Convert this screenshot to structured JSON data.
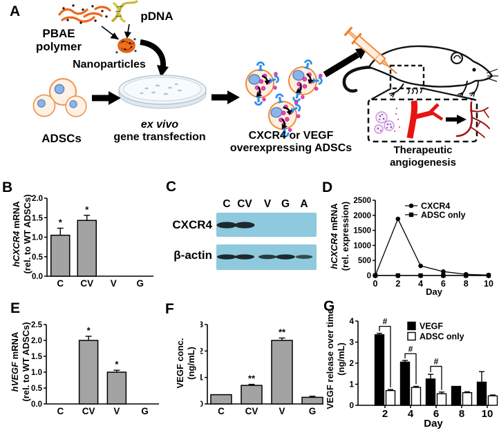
{
  "panels": {
    "a": "A",
    "b": "B",
    "c": "C",
    "d": "D",
    "e": "E",
    "f": "F",
    "g": "G"
  },
  "panelA": {
    "pbae_line1": "PBAE",
    "pbae_line2": "polymer",
    "pdna": "pDNA",
    "nanoparticles": "Nanoparticles",
    "adscs": "ADSCs",
    "exvivo": "ex vivo",
    "transfection": "gene transfection",
    "overexpress_line1": "CXCR4 or VEGF",
    "overexpress_line2": "overexpressing ADSCs",
    "therapeutic_line1": "Therapeutic",
    "therapeutic_line2": "angiogenesis"
  },
  "panelC": {
    "lanes": [
      "C",
      "CV",
      "V",
      "G",
      "A"
    ],
    "row1_label": "CXCR4",
    "row2_label": "β-actin",
    "row1_bands": [
      1,
      1,
      0,
      0,
      0
    ],
    "row2_bands": [
      1,
      1,
      0.75,
      1,
      0.55
    ],
    "membrane_color": "#8fc9de"
  },
  "chart_data": [
    {
      "panel": "B",
      "type": "bar",
      "categories": [
        "C",
        "CV",
        "V",
        "G"
      ],
      "values": [
        1.05,
        1.43,
        0,
        0
      ],
      "errors": [
        0.18,
        0.13,
        0,
        0
      ],
      "sig": [
        "*",
        "*",
        "",
        ""
      ],
      "ylabel_italic": "hCXCR4",
      "ylabel_rest": " mRNA",
      "ylabel_line2": "(rel. to WT ADSCs)",
      "ylim": [
        0,
        2
      ],
      "yticks": [
        0,
        0.5,
        1,
        1.5,
        2
      ],
      "ytick_labels": [
        "0.0",
        "0.5",
        "1.0",
        "1.5",
        "2.0"
      ],
      "bar_color": "#a3a3a3"
    },
    {
      "panel": "D",
      "type": "line",
      "x": [
        0,
        2,
        4,
        6,
        8,
        10
      ],
      "xtick_labels": [
        "0",
        "2",
        "4",
        "6",
        "8",
        "10"
      ],
      "xlabel": "Day",
      "xlim": [
        0,
        10
      ],
      "series": [
        {
          "name": "CXCR4",
          "marker": "circle",
          "values": [
            0,
            1880,
            320,
            130,
            40,
            15
          ]
        },
        {
          "name": "ADSC only",
          "marker": "square",
          "values": [
            0,
            0,
            0,
            0,
            0,
            0
          ]
        }
      ],
      "ylabel_italic": "hCXCR4",
      "ylabel_rest": " mRNA",
      "ylabel_line2": "(rel. expression)",
      "ylim": [
        0,
        2500
      ],
      "yticks": [
        0,
        500,
        1000,
        1500,
        2000,
        2500
      ],
      "ytick_labels": [
        "0",
        "500",
        "1000",
        "1500",
        "2000",
        "2500"
      ]
    },
    {
      "panel": "E",
      "type": "bar",
      "categories": [
        "C",
        "CV",
        "V",
        "G"
      ],
      "values": [
        0,
        2,
        1,
        0
      ],
      "errors": [
        0,
        0.13,
        0.06,
        0
      ],
      "sig": [
        "",
        "*",
        "*",
        ""
      ],
      "ylabel_italic": "hVEGF",
      "ylabel_rest": " mRNA",
      "ylabel_line2": "(rel. to WT ADSCs)",
      "ylim": [
        0,
        2.5
      ],
      "yticks": [
        0,
        0.5,
        1,
        1.5,
        2,
        2.5
      ],
      "ytick_labels": [
        "0.0",
        "0.5",
        "1.0",
        "1.5",
        "2.0",
        "2.5"
      ],
      "bar_color": "#a3a3a3"
    },
    {
      "panel": "F",
      "type": "bar",
      "categories": [
        "C",
        "CV",
        "V",
        "G"
      ],
      "values": [
        0.35,
        0.7,
        2.4,
        0.25
      ],
      "errors": [
        0,
        0.04,
        0.09,
        0.04
      ],
      "sig": [
        "",
        "**",
        "**",
        ""
      ],
      "ylabel_line1": "VEGF conc.",
      "ylabel_line2": "(ng/mL)",
      "ylim": [
        0,
        3
      ],
      "yticks": [
        0,
        1,
        2,
        3
      ],
      "ytick_labels": [
        "0",
        "1",
        "2",
        "3"
      ],
      "bar_color": "#a3a3a3"
    },
    {
      "panel": "G",
      "type": "grouped_bar",
      "categories": [
        "2",
        "4",
        "6",
        "8",
        "10"
      ],
      "xlabel": "Day",
      "series": [
        {
          "name": "VEGF",
          "fill": "#000000",
          "values": [
            3.35,
            2.05,
            1.25,
            0.9,
            1.1
          ],
          "errors": [
            0.07,
            0.08,
            0.22,
            0,
            0.5
          ]
        },
        {
          "name": "ADSC only",
          "fill": "#ffffff",
          "values": [
            0.7,
            0.85,
            0.55,
            0.6,
            0.45
          ],
          "errors": [
            0.05,
            0.05,
            0.08,
            0.04,
            0.04
          ]
        }
      ],
      "comparisons": [
        {
          "index": 0,
          "label": "#",
          "bracket_y": 3.75
        },
        {
          "index": 1,
          "label": "#",
          "bracket_y": 2.45
        },
        {
          "index": 2,
          "label": "#",
          "bracket_y": 1.85
        }
      ],
      "ylabel_line1": "VEGF release over time",
      "ylabel_line2": "(ng/mL)",
      "ylim": [
        0,
        4
      ],
      "yticks": [
        0,
        1,
        2,
        3,
        4
      ],
      "ytick_labels": [
        "0",
        "1",
        "2",
        "3",
        "4"
      ]
    }
  ]
}
